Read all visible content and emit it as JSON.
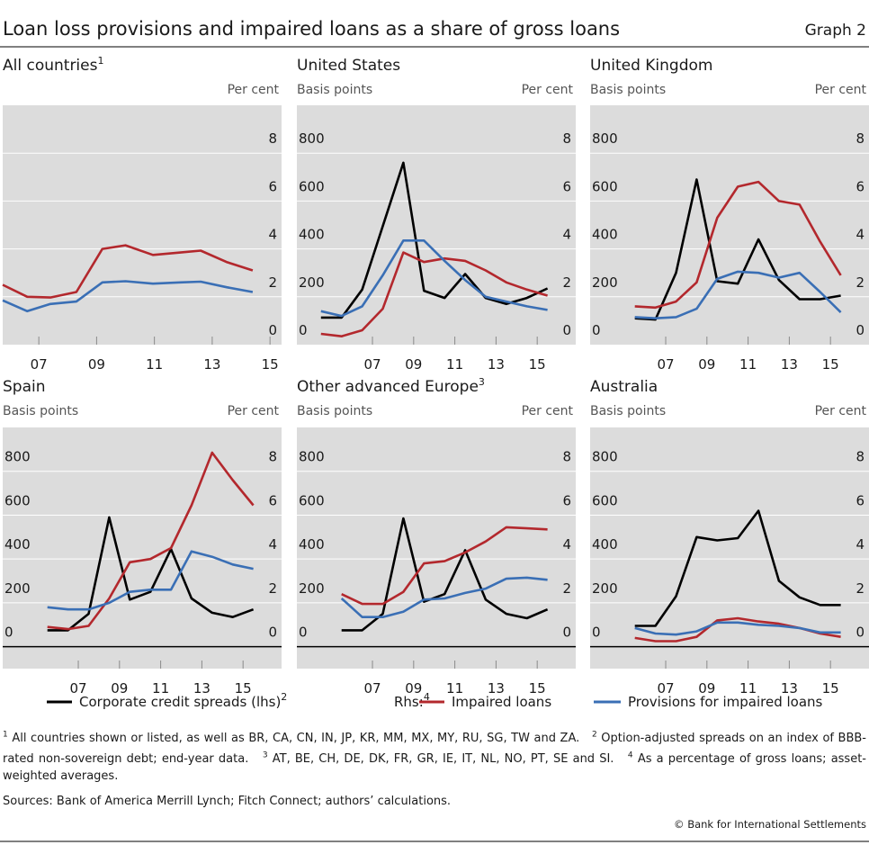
{
  "title": "Loan loss provisions and impaired loans as a share of gross loans",
  "graph_label": "Graph 2",
  "chart_data": [
    {
      "type": "line",
      "title": "All countries",
      "title_note": "1",
      "y2label": "Per cent",
      "xlim": [
        2006.25,
        2015.9
      ],
      "xticks": [
        {
          "value": 2007.5,
          "label": "07"
        },
        {
          "value": 2009.5,
          "label": "09"
        },
        {
          "value": 2011.5,
          "label": "11"
        },
        {
          "value": 2013.5,
          "label": "13"
        },
        {
          "value": 2015.5,
          "label": "15"
        }
      ],
      "y2lim": [
        0,
        10
      ],
      "y2ticks": [
        0,
        2,
        4,
        6,
        8
      ],
      "series": [
        {
          "name": "Impaired loans",
          "color": "#b3282d",
          "axis": "y2",
          "x": [
            2006.25,
            2007.1,
            2007.9,
            2008.8,
            2009.7,
            2010.5,
            2011.45,
            2012.4,
            2013.1,
            2014,
            2014.9
          ],
          "values": [
            2.5,
            2.0,
            1.97,
            2.2,
            4.0,
            4.15,
            3.75,
            3.85,
            3.93,
            3.45,
            3.1
          ]
        },
        {
          "name": "Provisions for impaired loans",
          "color": "#3a6fb5",
          "axis": "y2",
          "x": [
            2006.25,
            2007.1,
            2007.9,
            2008.8,
            2009.7,
            2010.5,
            2011.45,
            2012.4,
            2013.1,
            2014,
            2014.9
          ],
          "values": [
            1.85,
            1.4,
            1.7,
            1.8,
            2.6,
            2.65,
            2.55,
            2.6,
            2.63,
            2.4,
            2.2
          ]
        }
      ]
    },
    {
      "type": "line",
      "title": "United States",
      "ylabel": "Basis points",
      "y2label": "Per cent",
      "xlim": [
        2003.83,
        2017.37
      ],
      "xticks": [
        {
          "value": 2007.5,
          "label": "07"
        },
        {
          "value": 2009.5,
          "label": "09"
        },
        {
          "value": 2011.5,
          "label": "11"
        },
        {
          "value": 2013.5,
          "label": "13"
        },
        {
          "value": 2015.5,
          "label": "15"
        }
      ],
      "ylim": [
        0,
        1000
      ],
      "yticks": [
        0,
        200,
        400,
        600,
        800
      ],
      "y2lim": [
        0,
        10
      ],
      "y2ticks": [
        0,
        2,
        4,
        6,
        8
      ],
      "series": [
        {
          "name": "Corporate credit spreads (lhs)",
          "color": "#000000",
          "x": [
            2005,
            2006,
            2007,
            2008,
            2009,
            2010,
            2011,
            2012,
            2013,
            2014,
            2015,
            2016
          ],
          "values": [
            113,
            113,
            230,
            495,
            760,
            225,
            195,
            295,
            195,
            170,
            195,
            235
          ]
        },
        {
          "name": "Impaired loans",
          "color": "#b3282d",
          "axis": "y2",
          "x": [
            2005,
            2006,
            2007,
            2008,
            2009,
            2010,
            2011,
            2012,
            2013,
            2014,
            2015,
            2016
          ],
          "values": [
            0.45,
            0.35,
            0.6,
            1.5,
            3.85,
            3.45,
            3.6,
            3.5,
            3.1,
            2.6,
            2.3,
            2.05
          ]
        },
        {
          "name": "Provisions for impaired loans",
          "color": "#3a6fb5",
          "axis": "y2",
          "x": [
            2005,
            2006,
            2007,
            2008,
            2009,
            2010,
            2011,
            2012,
            2013,
            2014,
            2015,
            2016
          ],
          "values": [
            1.4,
            1.2,
            1.6,
            2.9,
            4.35,
            4.35,
            3.5,
            2.7,
            2.0,
            1.8,
            1.6,
            1.45
          ]
        }
      ]
    },
    {
      "type": "line",
      "title": "United Kingdom",
      "ylabel": "Basis points",
      "y2label": "Per cent",
      "xlim": [
        2003.83,
        2017.37
      ],
      "xticks": [
        {
          "value": 2007.5,
          "label": "07"
        },
        {
          "value": 2009.5,
          "label": "09"
        },
        {
          "value": 2011.5,
          "label": "11"
        },
        {
          "value": 2013.5,
          "label": "13"
        },
        {
          "value": 2015.5,
          "label": "15"
        }
      ],
      "ylim": [
        0,
        1000
      ],
      "yticks": [
        0,
        200,
        400,
        600,
        800
      ],
      "y2lim": [
        0,
        10
      ],
      "y2ticks": [
        0,
        2,
        4,
        6,
        8
      ],
      "series": [
        {
          "name": "Corporate credit spreads (lhs)",
          "color": "#000000",
          "x": [
            2006,
            2007,
            2008,
            2009,
            2010,
            2011,
            2012,
            2013,
            2014,
            2015,
            2016
          ],
          "values": [
            110,
            105,
            300,
            690,
            265,
            255,
            440,
            270,
            190,
            190,
            205
          ]
        },
        {
          "name": "Impaired loans",
          "color": "#b3282d",
          "axis": "y2",
          "x": [
            2006,
            2007,
            2008,
            2009,
            2010,
            2011,
            2012,
            2013,
            2014,
            2015,
            2016
          ],
          "values": [
            1.6,
            1.55,
            1.8,
            2.6,
            5.3,
            6.6,
            6.8,
            6.0,
            5.85,
            4.3,
            2.9
          ]
        },
        {
          "name": "Provisions for impaired loans",
          "color": "#3a6fb5",
          "axis": "y2",
          "x": [
            2006,
            2007,
            2008,
            2009,
            2010,
            2011,
            2012,
            2013,
            2014,
            2015,
            2016
          ],
          "values": [
            1.15,
            1.1,
            1.15,
            1.5,
            2.75,
            3.05,
            3.0,
            2.8,
            3.0,
            2.2,
            1.35
          ]
        }
      ]
    },
    {
      "type": "line",
      "title": "Spain",
      "ylabel": "Basis points",
      "y2label": "Per cent",
      "xlim": [
        2003.83,
        2017.37
      ],
      "xticks": [
        {
          "value": 2007.5,
          "label": "07"
        },
        {
          "value": 2009.5,
          "label": "09"
        },
        {
          "value": 2011.5,
          "label": "11"
        },
        {
          "value": 2013.5,
          "label": "13"
        },
        {
          "value": 2015.5,
          "label": "15"
        }
      ],
      "ylim": [
        -100,
        1000
      ],
      "yticks": [
        0,
        200,
        400,
        600,
        800
      ],
      "y2lim": [
        -1,
        10
      ],
      "y2ticks": [
        0,
        2,
        4,
        6,
        8
      ],
      "series": [
        {
          "name": "Corporate credit spreads (lhs)",
          "color": "#000000",
          "x": [
            2006,
            2007,
            2008,
            2009,
            2010,
            2011,
            2012,
            2013,
            2014,
            2015,
            2016
          ],
          "values": [
            75,
            75,
            150,
            590,
            215,
            250,
            445,
            220,
            155,
            135,
            170
          ]
        },
        {
          "name": "Impaired loans",
          "color": "#b3282d",
          "axis": "y2",
          "x": [
            2006,
            2007,
            2008,
            2009,
            2010,
            2011,
            2012,
            2013,
            2014,
            2015,
            2016
          ],
          "values": [
            0.9,
            0.8,
            0.95,
            2.2,
            3.85,
            4.0,
            4.5,
            6.45,
            8.85,
            7.6,
            6.45
          ]
        },
        {
          "name": "Provisions for impaired loans",
          "color": "#3a6fb5",
          "axis": "y2",
          "x": [
            2006,
            2007,
            2008,
            2009,
            2010,
            2011,
            2012,
            2013,
            2014,
            2015,
            2016
          ],
          "values": [
            1.8,
            1.7,
            1.7,
            2.0,
            2.5,
            2.6,
            2.6,
            4.35,
            4.1,
            3.75,
            3.55
          ]
        }
      ]
    },
    {
      "type": "line",
      "title": "Other advanced Europe",
      "title_note": "3",
      "ylabel": "Basis points",
      "y2label": "Per cent",
      "xlim": [
        2003.83,
        2017.37
      ],
      "xticks": [
        {
          "value": 2007.5,
          "label": "07"
        },
        {
          "value": 2009.5,
          "label": "09"
        },
        {
          "value": 2011.5,
          "label": "11"
        },
        {
          "value": 2013.5,
          "label": "13"
        },
        {
          "value": 2015.5,
          "label": "15"
        }
      ],
      "ylim": [
        -100,
        1000
      ],
      "yticks": [
        0,
        200,
        400,
        600,
        800
      ],
      "y2lim": [
        -1,
        10
      ],
      "y2ticks": [
        0,
        2,
        4,
        6,
        8
      ],
      "series": [
        {
          "name": "Corporate credit spreads (lhs)",
          "color": "#000000",
          "x": [
            2006,
            2007,
            2008,
            2009,
            2010,
            2011,
            2012,
            2013,
            2014,
            2015,
            2016
          ],
          "values": [
            75,
            75,
            150,
            585,
            205,
            240,
            440,
            215,
            150,
            130,
            170
          ]
        },
        {
          "name": "Impaired loans",
          "color": "#b3282d",
          "axis": "y2",
          "x": [
            2006,
            2007,
            2008,
            2009,
            2010,
            2011,
            2012,
            2013,
            2014,
            2015,
            2016
          ],
          "values": [
            2.4,
            1.95,
            1.95,
            2.5,
            3.8,
            3.9,
            4.3,
            4.8,
            5.45,
            5.4,
            5.35
          ]
        },
        {
          "name": "Provisions for impaired loans",
          "color": "#3a6fb5",
          "axis": "y2",
          "x": [
            2006,
            2007,
            2008,
            2009,
            2010,
            2011,
            2012,
            2013,
            2014,
            2015,
            2016
          ],
          "values": [
            2.2,
            1.35,
            1.35,
            1.6,
            2.15,
            2.2,
            2.45,
            2.65,
            3.1,
            3.15,
            3.05
          ]
        }
      ]
    },
    {
      "type": "line",
      "title": "Australia",
      "ylabel": "Basis points",
      "y2label": "Per cent",
      "xlim": [
        2003.83,
        2017.37
      ],
      "xticks": [
        {
          "value": 2007.5,
          "label": "07"
        },
        {
          "value": 2009.5,
          "label": "09"
        },
        {
          "value": 2011.5,
          "label": "11"
        },
        {
          "value": 2013.5,
          "label": "13"
        },
        {
          "value": 2015.5,
          "label": "15"
        }
      ],
      "ylim": [
        -100,
        1000
      ],
      "yticks": [
        0,
        200,
        400,
        600,
        800
      ],
      "y2lim": [
        -1,
        10
      ],
      "y2ticks": [
        0,
        2,
        4,
        6,
        8
      ],
      "series": [
        {
          "name": "Corporate credit spreads (lhs)",
          "color": "#000000",
          "x": [
            2006,
            2007,
            2008,
            2009,
            2010,
            2011,
            2012,
            2013,
            2014,
            2015,
            2016
          ],
          "values": [
            95,
            95,
            230,
            500,
            485,
            495,
            620,
            300,
            225,
            190,
            190
          ]
        },
        {
          "name": "Impaired loans",
          "color": "#b3282d",
          "axis": "y2",
          "x": [
            2006,
            2007,
            2008,
            2009,
            2010,
            2011,
            2012,
            2013,
            2014,
            2015,
            2016
          ],
          "values": [
            0.4,
            0.25,
            0.25,
            0.45,
            1.2,
            1.3,
            1.15,
            1.05,
            0.85,
            0.6,
            0.45
          ]
        },
        {
          "name": "Provisions for impaired loans",
          "color": "#3a6fb5",
          "axis": "y2",
          "x": [
            2006,
            2007,
            2008,
            2009,
            2010,
            2011,
            2012,
            2013,
            2014,
            2015,
            2016
          ],
          "values": [
            0.85,
            0.6,
            0.55,
            0.7,
            1.1,
            1.1,
            1.0,
            0.95,
            0.85,
            0.65,
            0.65
          ]
        }
      ]
    }
  ],
  "legend": {
    "lhs_note": "2",
    "rhs_label": "Rhs:",
    "rhs_note": "4"
  },
  "footnotes": [
    {
      "mark": "1",
      "text": "All countries shown or listed, as well as BR, CA, CN, IN, JP, KR, MM, MX, MY, RU, SG, TW and ZA."
    },
    {
      "mark": "2",
      "text": "Option-adjusted spreads on an index of BBB-rated non-sovereign debt; end-year data."
    },
    {
      "mark": "3",
      "text": "AT, BE, CH, DE, DK, FR, GR, IE, IT, NL, NO, PT, SE and SI."
    },
    {
      "mark": "4",
      "text": "As a percentage of gross loans; asset-weighted averages."
    }
  ],
  "sources": "Sources: Bank of America Merrill Lynch; Fitch Connect; authors’ calculations.",
  "copyright": "© Bank for International Settlements"
}
